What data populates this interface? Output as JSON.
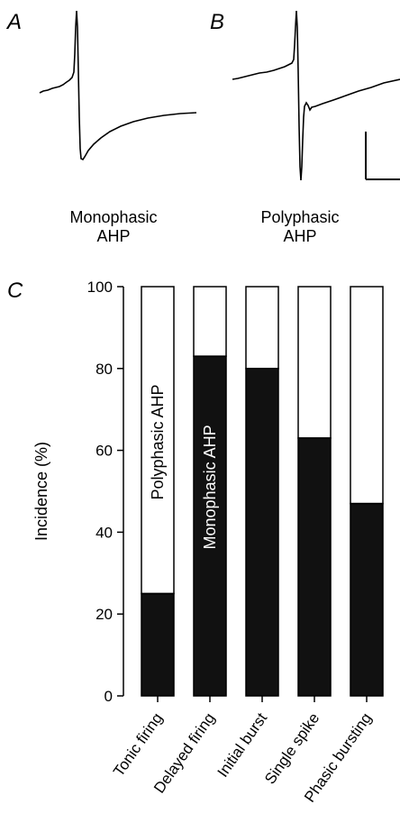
{
  "panels": {
    "a": {
      "letter": "A",
      "caption_line1": "Monophasic",
      "caption_line2": "AHP"
    },
    "b": {
      "letter": "B",
      "caption_line1": "Polyphasic",
      "caption_line2": "AHP"
    },
    "c": {
      "letter": "C"
    }
  },
  "chart_data": {
    "type": "bar",
    "stacked": true,
    "categories": [
      "Tonic firing",
      "Delayed firing",
      "Initial burst",
      "Single spike",
      "Phasic bursting"
    ],
    "series": [
      {
        "name": "Monophasic AHP",
        "color": "#111111",
        "values": [
          25,
          83,
          80,
          63,
          47
        ]
      },
      {
        "name": "Polyphasic AHP",
        "color": "#ffffff",
        "values": [
          75,
          17,
          20,
          37,
          53
        ]
      }
    ],
    "ylabel": "Incidence (%)",
    "xlabel": "",
    "ylim": [
      0,
      100
    ],
    "yticks": [
      0,
      20,
      40,
      60,
      80,
      100
    ],
    "annotations": [
      "Polyphasic AHP",
      "Monophasic AHP"
    ],
    "grid": false
  }
}
